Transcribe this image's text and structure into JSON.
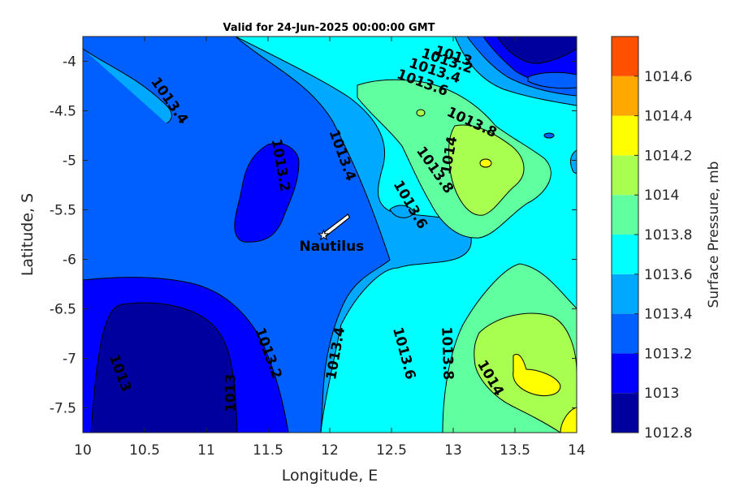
{
  "title": "Valid for 24-Jun-2025 00:00:00 GMT",
  "xlabel": "Longitude, E",
  "ylabel": "Latitude, S",
  "x_ticks": [
    "10",
    "10.5",
    "11",
    "11.5",
    "12",
    "12.5",
    "13",
    "13.5",
    "14"
  ],
  "y_ticks": [
    "-4",
    "-4.5",
    "-5",
    "-5.5",
    "-6",
    "-6.5",
    "-7",
    "-7.5"
  ],
  "colorbar": {
    "label": "Surface Pressure, mb",
    "ticks": [
      "1014.6",
      "1014.4",
      "1014.2",
      "1014",
      "1013.8",
      "1013.6",
      "1013.4",
      "1013.2",
      "1013",
      "1012.8"
    ],
    "levels": [
      {
        "from": 1012.8,
        "to": 1013.0,
        "color": "#00009f"
      },
      {
        "from": 1013.0,
        "to": 1013.2,
        "color": "#0000ff"
      },
      {
        "from": 1013.2,
        "to": 1013.4,
        "color": "#0060ff"
      },
      {
        "from": 1013.4,
        "to": 1013.6,
        "color": "#00a8ff"
      },
      {
        "from": 1013.6,
        "to": 1013.8,
        "color": "#00ffff"
      },
      {
        "from": 1013.8,
        "to": 1014.0,
        "color": "#60ffa0"
      },
      {
        "from": 1014.0,
        "to": 1014.2,
        "color": "#a8ff50"
      },
      {
        "from": 1014.2,
        "to": 1014.4,
        "color": "#ffff00"
      },
      {
        "from": 1014.4,
        "to": 1014.6,
        "color": "#ffa800"
      },
      {
        "from": 1014.6,
        "to": 1014.8,
        "color": "#ff5000"
      }
    ]
  },
  "marker": {
    "name": "Nautilus",
    "lon": 11.95,
    "lat": -5.75
  },
  "contour_labels": [
    {
      "text": "1013.4",
      "lon": 10.7,
      "lat": -4.4,
      "angle": 55
    },
    {
      "text": "1013.2",
      "lon": 11.6,
      "lat": -5.05,
      "angle": 80
    },
    {
      "text": "1013.4",
      "lon": 12.1,
      "lat": -4.95,
      "angle": 70
    },
    {
      "text": "1013.6",
      "lon": 12.65,
      "lat": -5.45,
      "angle": 60
    },
    {
      "text": "1013.8",
      "lon": 12.85,
      "lat": -5.1,
      "angle": 55
    },
    {
      "text": "1014",
      "lon": 12.97,
      "lat": -4.95,
      "angle": -80
    },
    {
      "text": "1013.8",
      "lon": 13.15,
      "lat": -4.62,
      "angle": 25
    },
    {
      "text": "1013.6",
      "lon": 12.75,
      "lat": -4.22,
      "angle": 20
    },
    {
      "text": "1013.4",
      "lon": 12.85,
      "lat": -4.1,
      "angle": 18
    },
    {
      "text": "1013.2",
      "lon": 12.95,
      "lat": -4.0,
      "angle": 18
    },
    {
      "text": "1013",
      "lon": 13.0,
      "lat": -3.95,
      "angle": 18
    },
    {
      "text": "1013.2",
      "lon": 11.5,
      "lat": -6.95,
      "angle": 70
    },
    {
      "text": "1013.4",
      "lon": 12.05,
      "lat": -6.95,
      "angle": -80
    },
    {
      "text": "1013.6",
      "lon": 12.6,
      "lat": -6.95,
      "angle": 75
    },
    {
      "text": "1013.8",
      "lon": 12.95,
      "lat": -6.95,
      "angle": 88
    },
    {
      "text": "1014",
      "lon": 13.3,
      "lat": -7.2,
      "angle": 60
    },
    {
      "text": "1013",
      "lon": 10.3,
      "lat": -7.15,
      "angle": 70
    },
    {
      "text": "1013",
      "lon": 11.2,
      "lat": -7.35,
      "angle": -90
    }
  ]
}
